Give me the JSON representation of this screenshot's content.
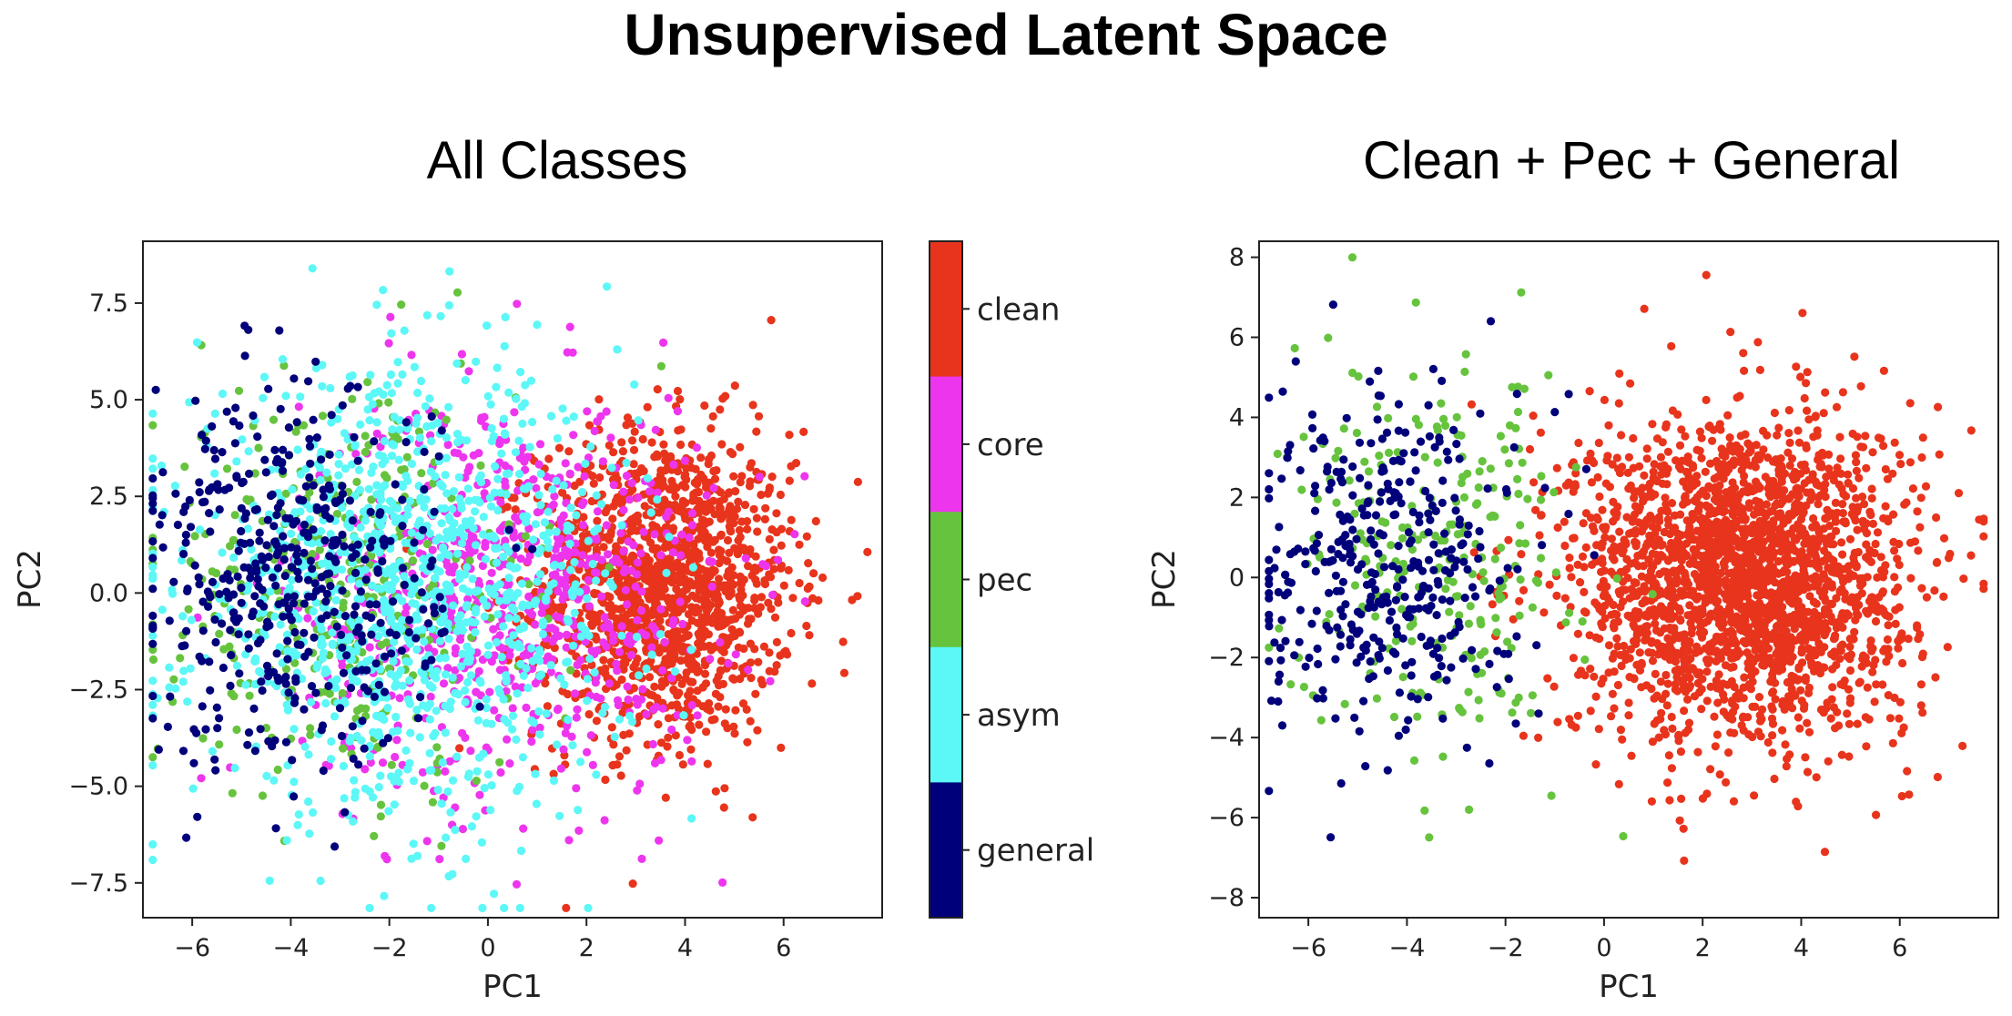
{
  "title": "Unsupervised Latent Space",
  "colors": {
    "clean": "#e8341c",
    "core": "#ee35ee",
    "pec": "#66c33d",
    "asym": "#5cf7f7",
    "general": "#00007a"
  },
  "colorbar": {
    "categories": [
      "clean",
      "core",
      "pec",
      "asym",
      "general"
    ]
  },
  "chart_data": [
    {
      "type": "scatter",
      "title": "All Classes",
      "xlabel": "PC1",
      "ylabel": "PC2",
      "xlim": [
        -7,
        8
      ],
      "ylim": [
        -8.4,
        9.1
      ],
      "xticks": [
        -6,
        -4,
        -2,
        0,
        2,
        4,
        6
      ],
      "yticks": [
        -7.5,
        -5.0,
        -2.5,
        0.0,
        2.5,
        5.0,
        7.5
      ],
      "ytick_labels": [
        "−7.5",
        "−5.0",
        "−2.5",
        "0.0",
        "2.5",
        "5.0",
        "7.5"
      ],
      "xtick_labels": [
        "−6",
        "−4",
        "−2",
        "0",
        "2",
        "4",
        "6"
      ],
      "grid": false,
      "series": [
        {
          "name": "clean",
          "cluster": {
            "mean": [
              3.6,
              0.2
            ],
            "sd": [
              1.3,
              2.0
            ],
            "count": 1400
          }
        },
        {
          "name": "core",
          "cluster": {
            "mean": [
              0.4,
              0.0
            ],
            "sd": [
              2.1,
              2.6
            ],
            "count": 750
          }
        },
        {
          "name": "pec",
          "cluster": {
            "mean": [
              -3.0,
              0.2
            ],
            "sd": [
              1.8,
              2.6
            ],
            "count": 350
          }
        },
        {
          "name": "asym",
          "cluster": {
            "mean": [
              -1.6,
              0.0
            ],
            "sd": [
              2.2,
              2.8
            ],
            "count": 1100
          }
        },
        {
          "name": "general",
          "cluster": {
            "mean": [
              -4.0,
              0.3
            ],
            "sd": [
              1.5,
              2.4
            ],
            "count": 450
          }
        }
      ]
    },
    {
      "type": "scatter",
      "title": "Clean + Pec + General",
      "xlabel": "PC1",
      "ylabel": "PC2",
      "xlim": [
        -7,
        8
      ],
      "ylim": [
        -8.5,
        8.4
      ],
      "xticks": [
        -6,
        -4,
        -2,
        0,
        2,
        4,
        6
      ],
      "xtick_labels": [
        "−6",
        "−4",
        "−2",
        "0",
        "2",
        "4",
        "6"
      ],
      "yticks": [
        -8,
        -6,
        -4,
        -2,
        0,
        2,
        4,
        6,
        8
      ],
      "ytick_labels": [
        "−8",
        "−6",
        "−4",
        "−2",
        "0",
        "2",
        "4",
        "6",
        "8"
      ],
      "grid": false,
      "series": [
        {
          "name": "clean",
          "cluster": {
            "mean": [
              2.8,
              0.0
            ],
            "sd": [
              1.7,
              2.0
            ],
            "count": 2300
          }
        },
        {
          "name": "pec",
          "cluster": {
            "mean": [
              -3.4,
              0.4
            ],
            "sd": [
              1.4,
              2.4
            ],
            "count": 260
          }
        },
        {
          "name": "general",
          "cluster": {
            "mean": [
              -4.4,
              0.3
            ],
            "sd": [
              1.3,
              2.2
            ],
            "count": 380
          }
        }
      ]
    }
  ]
}
